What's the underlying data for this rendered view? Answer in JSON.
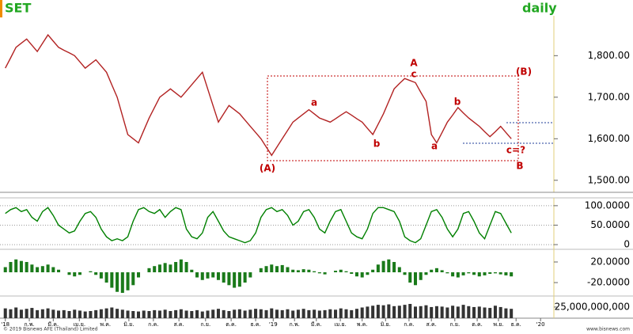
{
  "chart_data": [
    {
      "type": "line",
      "title": "SET",
      "subtitle": "daily",
      "color": "#b22222",
      "values": [
        1770,
        1795,
        1820,
        1830,
        1840,
        1825,
        1810,
        1830,
        1850,
        1835,
        1820,
        1813,
        1807,
        1800,
        1785,
        1770,
        1780,
        1790,
        1775,
        1760,
        1730,
        1700,
        1655,
        1610,
        1600,
        1590,
        1620,
        1650,
        1675,
        1700,
        1710,
        1720,
        1710,
        1700,
        1715,
        1730,
        1745,
        1760,
        1720,
        1680,
        1640,
        1660,
        1680,
        1670,
        1660,
        1645,
        1630,
        1615,
        1600,
        1580,
        1560,
        1580,
        1600,
        1620,
        1640,
        1650,
        1660,
        1670,
        1660,
        1650,
        1645,
        1640,
        1648,
        1657,
        1665,
        1657,
        1648,
        1640,
        1625,
        1610,
        1635,
        1660,
        1690,
        1720,
        1733,
        1745,
        1740,
        1735,
        1712,
        1690,
        1610,
        1590,
        1615,
        1640,
        1657,
        1675,
        1662,
        1650,
        1640,
        1630,
        1617,
        1605,
        1617,
        1630,
        1615,
        1600
      ],
      "ylim": [
        1471,
        1934
      ],
      "yticks": [
        {
          "value": 1500,
          "label": "1,500.00"
        },
        {
          "value": 1600,
          "label": "1,600.00"
        },
        {
          "value": 1700,
          "label": "1,700.00"
        },
        {
          "value": 1800,
          "label": "1,800.00"
        }
      ],
      "xlim": [
        -1,
        103
      ],
      "xticks": [
        {
          "value": 0,
          "label": "'18"
        },
        {
          "value": 4.5,
          "label": "ก.พ."
        },
        {
          "value": 9,
          "label": "มี.ค."
        },
        {
          "value": 13.9,
          "label": "เม.ย."
        },
        {
          "value": 18.8,
          "label": "พ.ค."
        },
        {
          "value": 23.2,
          "label": "มิ.ย."
        },
        {
          "value": 27.8,
          "label": "ก.ค."
        },
        {
          "value": 32.6,
          "label": "ส.ค."
        },
        {
          "value": 37.6,
          "label": "ก.ย."
        },
        {
          "value": 42.4,
          "label": "ต.ค."
        },
        {
          "value": 47,
          "label": "ธ.ค."
        },
        {
          "value": 50.3,
          "label": "'19"
        },
        {
          "value": 54.3,
          "label": "ก.พ."
        },
        {
          "value": 58.4,
          "label": "มี.ค."
        },
        {
          "value": 62.9,
          "label": "เม.ย."
        },
        {
          "value": 67,
          "label": "พ.ค."
        },
        {
          "value": 71.4,
          "label": "มิ.ย."
        },
        {
          "value": 75.8,
          "label": "ก.ค."
        },
        {
          "value": 80,
          "label": "ส.ค."
        },
        {
          "value": 84.4,
          "label": "ก.ย."
        },
        {
          "value": 88.6,
          "label": "ต.ค."
        },
        {
          "value": 92.6,
          "label": "พ.ย."
        },
        {
          "value": 95.9,
          "label": "ธ.ค."
        },
        {
          "value": 100.5,
          "label": "'20"
        }
      ],
      "annotations": [
        "A",
        "c",
        "a",
        "b",
        "(A)",
        "a",
        "b",
        "(B)",
        "c=?",
        "B"
      ]
    },
    {
      "type": "line",
      "color": "#008000",
      "values": [
        80,
        90,
        95,
        85,
        90,
        70,
        60,
        85,
        95,
        75,
        50,
        40,
        30,
        35,
        60,
        80,
        85,
        70,
        40,
        20,
        10,
        15,
        10,
        20,
        60,
        90,
        95,
        85,
        80,
        90,
        70,
        85,
        95,
        90,
        40,
        20,
        15,
        30,
        70,
        85,
        60,
        35,
        20,
        15,
        10,
        5,
        10,
        30,
        70,
        90,
        95,
        85,
        90,
        75,
        50,
        60,
        85,
        90,
        70,
        40,
        30,
        60,
        85,
        90,
        60,
        30,
        20,
        15,
        40,
        80,
        95,
        95,
        90,
        85,
        60,
        20,
        10,
        5,
        15,
        50,
        85,
        90,
        70,
        40,
        20,
        40,
        80,
        85,
        60,
        30,
        15,
        50,
        85,
        80,
        55,
        30
      ],
      "ylim": [
        -8,
        116
      ],
      "grid": true,
      "yticks": [
        0,
        {
          "value": 50,
          "label": "50.0000"
        },
        {
          "value": 100,
          "label": "100.0000"
        }
      ]
    },
    {
      "type": "bar",
      "color": "#1a7a1a",
      "values": [
        10,
        20,
        25,
        22,
        20,
        15,
        10,
        12,
        15,
        10,
        5,
        0,
        -5,
        -8,
        -5,
        0,
        2,
        -5,
        -12,
        -20,
        -30,
        -38,
        -40,
        -35,
        -25,
        -10,
        0,
        8,
        12,
        15,
        18,
        15,
        20,
        25,
        20,
        5,
        -10,
        -15,
        -12,
        -10,
        -15,
        -20,
        -25,
        -30,
        -28,
        -20,
        -10,
        0,
        8,
        12,
        15,
        12,
        14,
        10,
        5,
        4,
        6,
        5,
        2,
        -2,
        -4,
        0,
        3,
        5,
        2,
        -3,
        -8,
        -10,
        -5,
        5,
        15,
        22,
        25,
        20,
        10,
        -5,
        -20,
        -25,
        -15,
        -5,
        5,
        8,
        4,
        -2,
        -8,
        -10,
        -6,
        -2,
        -5,
        -8,
        -6,
        -3,
        -2,
        -4,
        -6,
        -8
      ],
      "ylim": [
        -43,
        40
      ],
      "yticks": [
        {
          "value": -20,
          "label": "-20.0000"
        },
        {
          "value": 20,
          "label": "20.0000"
        }
      ]
    },
    {
      "type": "bar",
      "color": "#333333",
      "values": [
        22000000000.0,
        20000000000.0,
        24000000000.0,
        19000000000.0,
        21000000000.0,
        23000000000.0,
        18000000000.0,
        20000000000.0,
        22000000000.0,
        19000000000.0,
        17000000000.0,
        18000000000.0,
        16000000000.0,
        19000000000.0,
        17000000000.0,
        15000000000.0,
        16000000000.0,
        18000000000.0,
        20000000000.0,
        22000000000.0,
        24000000000.0,
        21000000000.0,
        19000000000.0,
        17000000000.0,
        16000000000.0,
        15000000000.0,
        17000000000.0,
        16000000000.0,
        18000000000.0,
        17000000000.0,
        19000000000.0,
        16000000000.0,
        18000000000.0,
        20000000000.0,
        17000000000.0,
        16000000000.0,
        18000000000.0,
        15000000000.0,
        17000000000.0,
        19000000000.0,
        21000000000.0,
        18000000000.0,
        16000000000.0,
        19000000000.0,
        20000000000.0,
        17000000000.0,
        19000000000.0,
        21000000000.0,
        20000000000.0,
        18000000000.0,
        22000000000.0,
        19000000000.0,
        18000000000.0,
        20000000000.0,
        17000000000.0,
        19000000000.0,
        21000000000.0,
        18000000000.0,
        19000000000.0,
        17000000000.0,
        18000000000.0,
        20000000000.0,
        19000000000.0,
        22000000000.0,
        20000000000.0,
        18000000000.0,
        21000000000.0,
        24000000000.0,
        26000000000.0,
        28000000000.0,
        30000000000.0,
        29000000000.0,
        31000000000.0,
        27000000000.0,
        28000000000.0,
        30000000000.0,
        32000000000.0,
        26000000000.0,
        27000000000.0,
        29000000000.0,
        25000000000.0,
        27000000000.0,
        26000000000.0,
        24000000000.0,
        28000000000.0,
        26000000000.0,
        30000000000.0,
        27000000000.0,
        25000000000.0,
        26000000000.0,
        24000000000.0,
        23000000000.0,
        28000000000.0,
        25000000000.0,
        22000000000.0,
        21000000000.0
      ],
      "ylim": [
        0,
        48000000000.0
      ],
      "yticks": [
        {
          "value": 25000000000,
          "label": "25,000,000,000"
        }
      ]
    }
  ],
  "footer": {
    "copyright": "© 2019 Bisnews AFE (Thailand) Limited",
    "website": "www.bisnews.com"
  }
}
